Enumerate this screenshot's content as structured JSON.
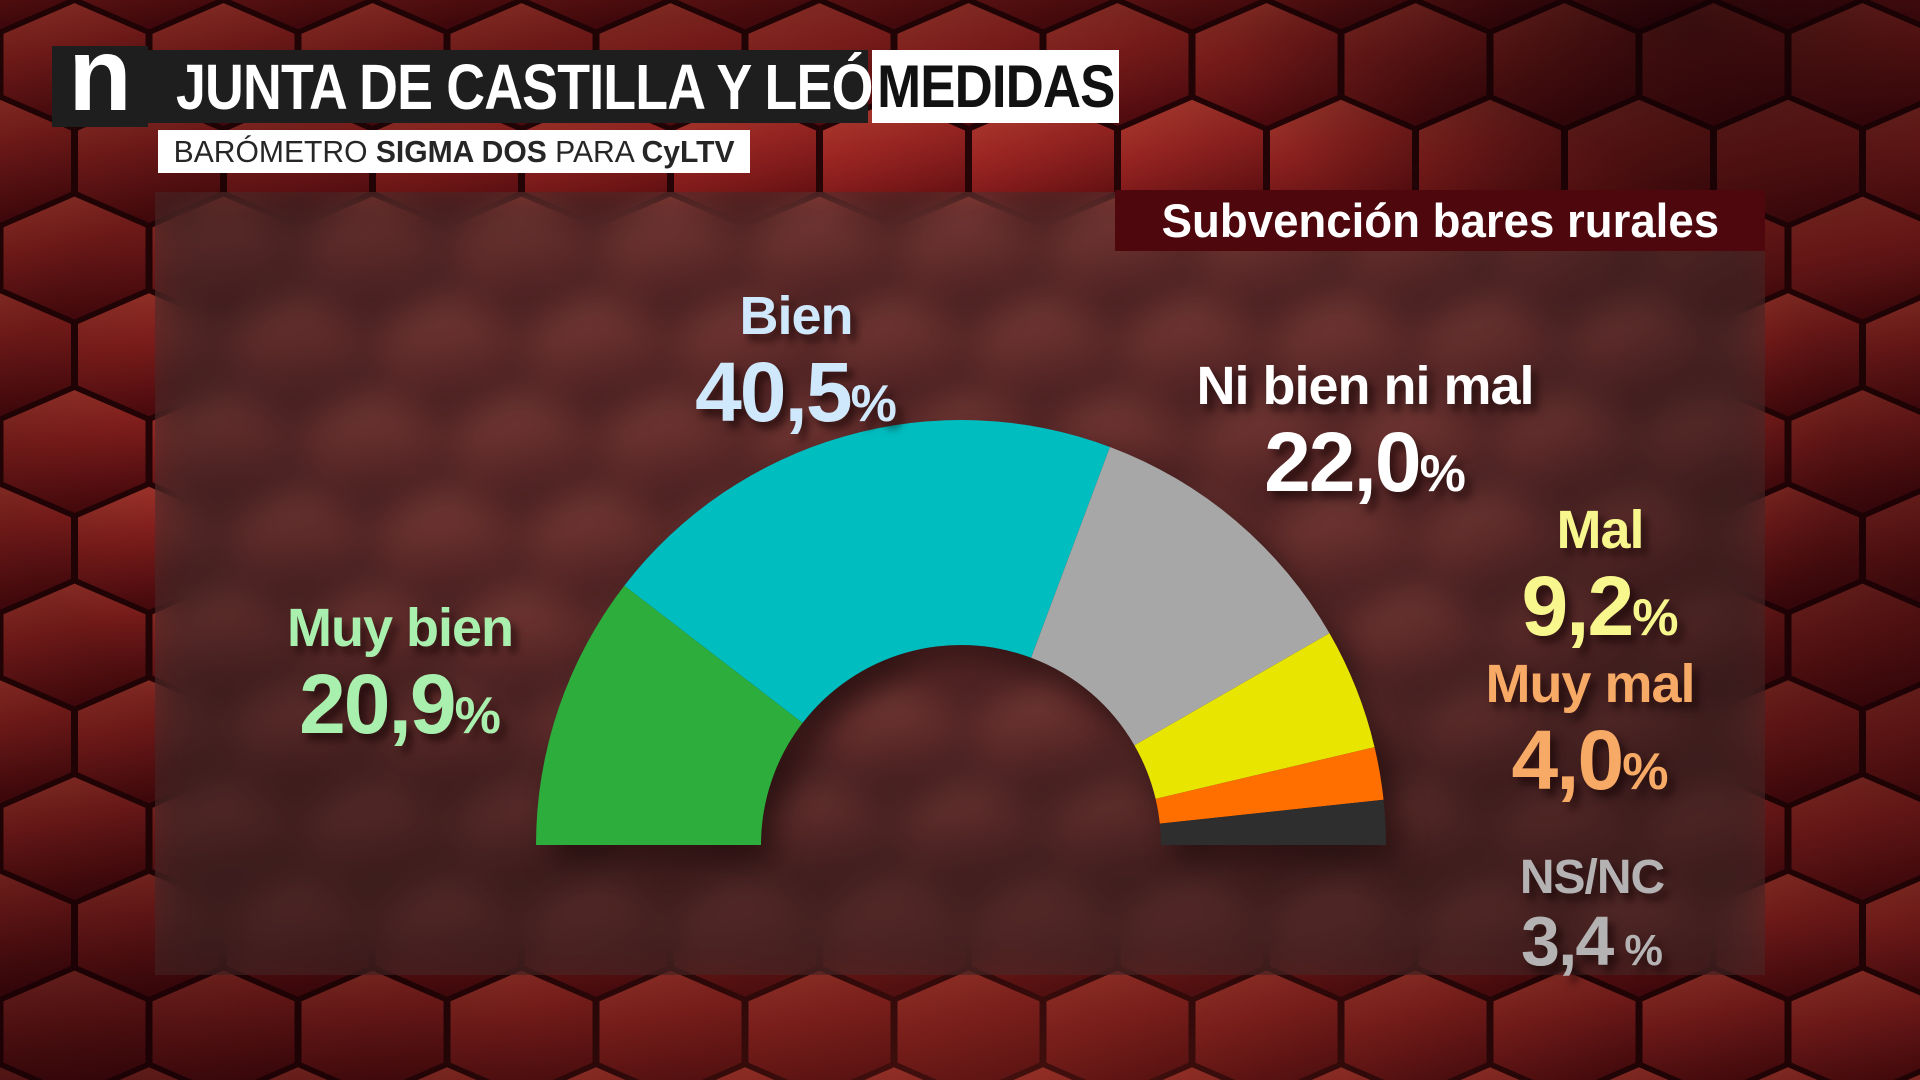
{
  "header": {
    "logo_text": "n",
    "program_title": "JUNTA DE CASTILLA Y LEÓN",
    "badge": "MEDIDAS",
    "subtitle": {
      "part1": "BARÓMETRO ",
      "part2": "SIGMA DOS",
      "part3": " PARA ",
      "part4": "CyLTV"
    }
  },
  "panel": {
    "title": "Subvención bares rurales",
    "title_bg": "#4d070d"
  },
  "chart_data": {
    "type": "pie",
    "variant": "half-donut-gauge",
    "title": "Subvención bares rurales",
    "categories": [
      "Muy bien",
      "Bien",
      "Ni bien ni mal",
      "Mal",
      "Muy mal",
      "NS/NC"
    ],
    "values": [
      20.9,
      40.5,
      22.0,
      9.2,
      4.0,
      3.4
    ],
    "display_values": [
      "20,9%",
      "40,5%",
      "22,0%",
      "9,2%",
      "4,0%",
      "3,4 %"
    ],
    "slice_colors": [
      "#2cad3c",
      "#00bdc0",
      "#a7a7a7",
      "#e8e600",
      "#fe6f00",
      "#2e2e2e"
    ],
    "start_angle_deg": 180,
    "end_angle_deg": 0,
    "inner_radius_ratio": 0.47,
    "grid": false,
    "legend_position": "around-arc"
  },
  "labels": [
    {
      "id": "muy-bien",
      "name": "Muy bien",
      "value": "20,9",
      "pct": "%",
      "color": "#a9efad"
    },
    {
      "id": "bien",
      "name": "Bien",
      "value": "40,5",
      "pct": "%",
      "color": "#cfe8fb"
    },
    {
      "id": "ni-bien-ni-mal",
      "name": "Ni bien ni mal",
      "value": "22,0",
      "pct": "%",
      "color": "#ffffff"
    },
    {
      "id": "mal",
      "name": "Mal",
      "value": "9,2",
      "pct": "%",
      "color": "#f7f78e"
    },
    {
      "id": "muy-mal",
      "name": "Muy mal",
      "value": "4,0",
      "pct": "%",
      "color": "#f7a966"
    },
    {
      "id": "ns-nc",
      "name": "NS/NC",
      "value": "3,4",
      "pct": " %",
      "color": "#b5b2b3"
    }
  ]
}
